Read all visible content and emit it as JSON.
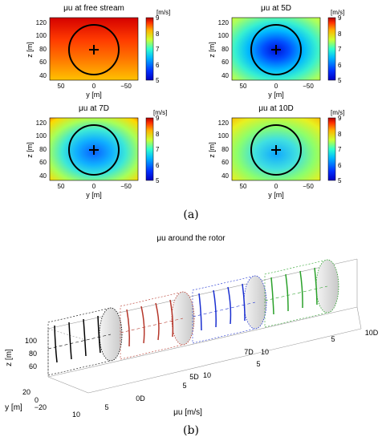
{
  "captions": {
    "a": "(a)",
    "b": "(b)"
  },
  "panel_a": {
    "colorbar": {
      "unit": "[m/s]",
      "ticks": [
        "9",
        "8",
        "7",
        "6",
        "5"
      ],
      "min": 5,
      "max": 9
    },
    "y_axis_label": "z [m]",
    "x_axis_label": "y [m]",
    "maps": [
      {
        "title": "μu at free stream",
        "style": "free"
      },
      {
        "title": "μu at 5D",
        "style": "d5"
      },
      {
        "title": "μu at 7D",
        "style": "d7"
      },
      {
        "title": "μu at 10D",
        "style": "d10"
      }
    ]
  },
  "panel_b": {
    "title": "μu around the rotor",
    "z_label": "z [m]",
    "y_label": "y [m]",
    "x_label": "μu [m/s]",
    "stations": [
      {
        "label": "0D",
        "color": "#000000"
      },
      {
        "label": "5D",
        "color": "#b5362a"
      },
      {
        "label": "7D",
        "color": "#1a2fd0"
      },
      {
        "label": "10D",
        "color": "#2aa12a"
      }
    ]
  },
  "chart_data": [
    {
      "type": "heatmap",
      "title": "μu at free stream",
      "xlabel": "y [m]",
      "ylabel": "z [m]",
      "x_ticks": [
        50,
        0,
        -50
      ],
      "y_ticks": [
        40,
        60,
        80,
        100,
        120
      ],
      "xlim": [
        70,
        -70
      ],
      "ylim": [
        30,
        125
      ],
      "colorbar": {
        "label": "[m/s]",
        "range": [
          5,
          9
        ],
        "ticks": [
          5,
          6,
          7,
          8,
          9
        ]
      },
      "rotor": {
        "hub_height": 80,
        "diameter": 80
      },
      "values_m_s": {
        "top": 9.0,
        "hub": 8.3,
        "bottom": 7.6
      }
    },
    {
      "type": "heatmap",
      "title": "μu at 5D",
      "xlabel": "y [m]",
      "ylabel": "z [m]",
      "x_ticks": [
        50,
        0,
        -50
      ],
      "y_ticks": [
        40,
        60,
        80,
        100,
        120
      ],
      "xlim": [
        70,
        -70
      ],
      "ylim": [
        30,
        125
      ],
      "colorbar": {
        "label": "[m/s]",
        "range": [
          5,
          9
        ],
        "ticks": [
          5,
          6,
          7,
          8,
          9
        ]
      },
      "rotor": {
        "hub_height": 80,
        "diameter": 80
      },
      "values_m_s": {
        "hub": 5.2,
        "outside_top": 7.3,
        "outside_bottom": 6.6
      }
    },
    {
      "type": "heatmap",
      "title": "μu at 7D",
      "xlabel": "y [m]",
      "ylabel": "z [m]",
      "x_ticks": [
        50,
        0,
        -50
      ],
      "y_ticks": [
        40,
        60,
        80,
        100,
        120
      ],
      "xlim": [
        70,
        -70
      ],
      "ylim": [
        30,
        125
      ],
      "colorbar": {
        "label": "[m/s]",
        "range": [
          5,
          9
        ],
        "ticks": [
          5,
          6,
          7,
          8,
          9
        ]
      },
      "rotor": {
        "hub_height": 80,
        "diameter": 80
      },
      "values_m_s": {
        "hub": 6.3,
        "outside_top": 8.4,
        "outside_bottom": 7.0
      }
    },
    {
      "type": "heatmap",
      "title": "μu at 10D",
      "xlabel": "y [m]",
      "ylabel": "z [m]",
      "x_ticks": [
        50,
        0,
        -50
      ],
      "y_ticks": [
        40,
        60,
        80,
        100,
        120
      ],
      "xlim": [
        70,
        -70
      ],
      "ylim": [
        30,
        125
      ],
      "colorbar": {
        "label": "[m/s]",
        "range": [
          5,
          9
        ],
        "ticks": [
          5,
          6,
          7,
          8,
          9
        ]
      },
      "rotor": {
        "hub_height": 80,
        "diameter": 80
      },
      "values_m_s": {
        "hub": 6.7,
        "outside_top": 7.8,
        "outside_bottom": 6.8
      }
    },
    {
      "type": "line",
      "title": "μu around the rotor",
      "xlabel": "μu [m/s]",
      "ylabel": "y [m]",
      "zlabel": "z [m]",
      "z_ticks": [
        60,
        80,
        100
      ],
      "y_ticks": [
        20,
        0,
        -20
      ],
      "speed_ticks": [
        5,
        10
      ],
      "stations": [
        "0D",
        "5D",
        "7D",
        "10D"
      ],
      "series": [
        {
          "name": "0D",
          "profiles_m_s": [
            8.6,
            8.2,
            7.9,
            8.4
          ]
        },
        {
          "name": "5D",
          "profiles_m_s": [
            6.4,
            5.6,
            5.3,
            6.2
          ]
        },
        {
          "name": "7D",
          "profiles_m_s": [
            7.2,
            6.5,
            6.1,
            7.0
          ]
        },
        {
          "name": "10D",
          "profiles_m_s": [
            7.6,
            7.0,
            6.8,
            7.4
          ]
        }
      ]
    }
  ]
}
